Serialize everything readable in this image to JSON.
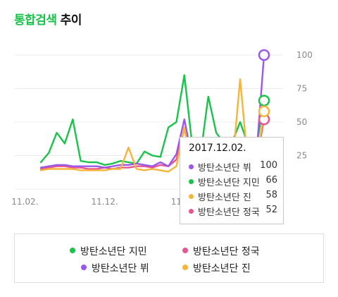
{
  "header": {
    "title_green": "통합검색",
    "title_black": "추이"
  },
  "colors": {
    "jimin": "#19c24a",
    "v": "#9b57e8",
    "jin": "#f6b43a",
    "jungkook": "#e9558e",
    "grid": "#ececec"
  },
  "chart_data": {
    "type": "line",
    "title": "통합검색 추이",
    "ylim": [
      0,
      100
    ],
    "y_ticks": [
      "100",
      "75",
      "50",
      "25"
    ],
    "x_tick_labels": [
      "11.02.",
      "11.12.",
      "11.22.",
      "12.02."
    ],
    "x": [
      "11.04",
      "11.05",
      "11.06",
      "11.07",
      "11.08",
      "11.09",
      "11.10",
      "11.11",
      "11.12",
      "11.13",
      "11.14",
      "11.15",
      "11.16",
      "11.17",
      "11.18",
      "11.19",
      "11.20",
      "11.21",
      "11.22",
      "11.23",
      "11.24",
      "11.25",
      "11.26",
      "11.27",
      "11.28",
      "11.29",
      "11.30",
      "12.01",
      "12.02"
    ],
    "series": [
      {
        "name": "방탄소년단 지민",
        "key": "jimin",
        "values": [
          20,
          27,
          42,
          34,
          52,
          21,
          20,
          20,
          18,
          19,
          21,
          20,
          19,
          28,
          25,
          24,
          46,
          50,
          85,
          32,
          24,
          69,
          42,
          34,
          35,
          50,
          33,
          30,
          66
        ]
      },
      {
        "name": "방탄소년단 정국",
        "key": "jungkook",
        "values": [
          15,
          16,
          17,
          17,
          16,
          16,
          15,
          15,
          16,
          15,
          16,
          16,
          17,
          17,
          16,
          18,
          17,
          22,
          45,
          20,
          20,
          32,
          30,
          30,
          31,
          19,
          18,
          20,
          52
        ]
      },
      {
        "name": "방탄소년단 뷔",
        "key": "v",
        "values": [
          16,
          17,
          18,
          18,
          17,
          17,
          17,
          17,
          16,
          17,
          18,
          18,
          19,
          18,
          17,
          20,
          17,
          26,
          52,
          22,
          21,
          31,
          30,
          31,
          31,
          21,
          20,
          22,
          100
        ]
      },
      {
        "name": "방탄소년단 진",
        "key": "jin",
        "values": [
          14,
          15,
          15,
          15,
          15,
          14,
          14,
          14,
          14,
          15,
          15,
          31,
          15,
          14,
          15,
          14,
          13,
          17,
          46,
          15,
          15,
          20,
          19,
          15,
          16,
          82,
          17,
          18,
          58
        ]
      }
    ]
  },
  "tooltip": {
    "date": "2017.12.02.",
    "rows": [
      {
        "key": "v",
        "name": "방탄소년단 뷔",
        "value": "100"
      },
      {
        "key": "jimin",
        "name": "방탄소년단 지민",
        "value": "66"
      },
      {
        "key": "jin",
        "name": "방탄소년단 진",
        "value": "58"
      },
      {
        "key": "jungkook",
        "name": "방탄소년단 정국",
        "value": "52"
      }
    ]
  },
  "legend": [
    {
      "key": "jimin",
      "label": "방탄소년단 지민"
    },
    {
      "key": "jungkook",
      "label": "방탄소년단 정국"
    },
    {
      "key": "v",
      "label": "방탄소년단 뷔"
    },
    {
      "key": "jin",
      "label": "방탄소년단 진"
    }
  ]
}
